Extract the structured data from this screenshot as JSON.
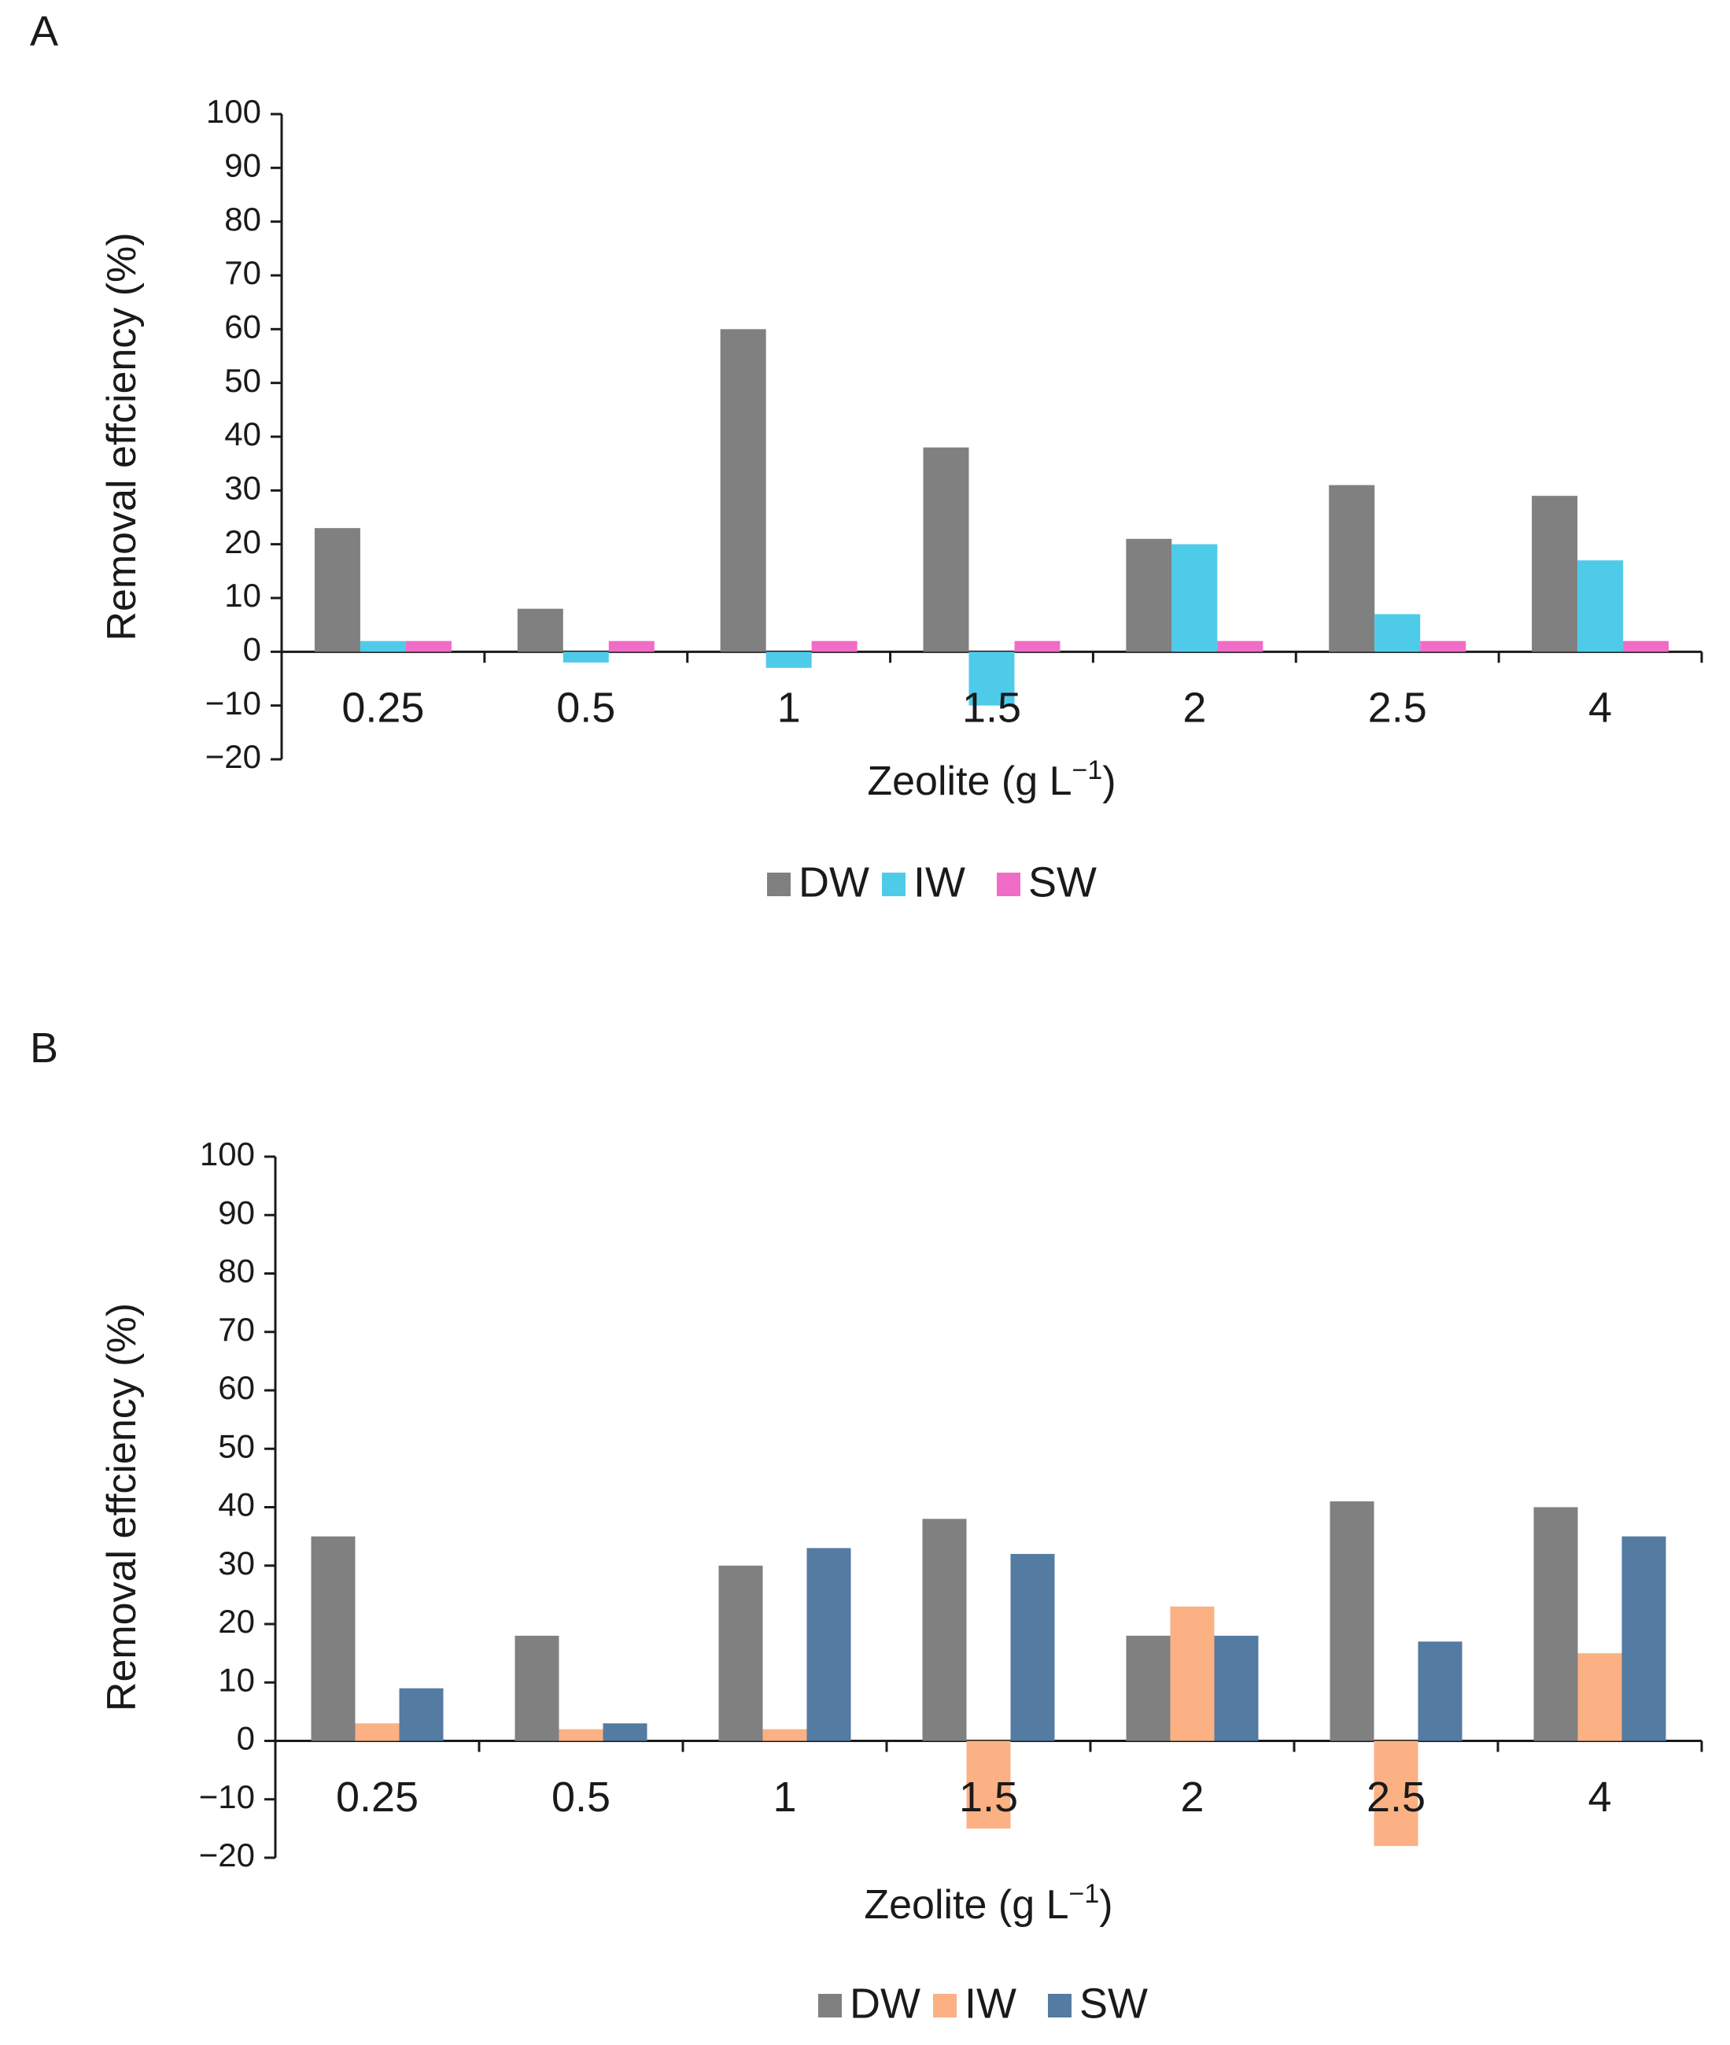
{
  "chart_data": [
    {
      "type": "bar",
      "panel_label": "A",
      "categories": [
        "0.25",
        "0.5",
        "1",
        "1.5",
        "2",
        "2.5",
        "4"
      ],
      "series": [
        {
          "name": "DW",
          "color": "#808080",
          "values": [
            23,
            8,
            60,
            38,
            21,
            31,
            29
          ]
        },
        {
          "name": "IW",
          "color": "#4fcbea",
          "values": [
            2,
            -2,
            -3,
            -10,
            20,
            7,
            17
          ]
        },
        {
          "name": "SW",
          "color": "#f06cc7",
          "values": [
            2,
            2,
            2,
            2,
            2,
            2,
            2
          ]
        }
      ],
      "yticks": [
        "-20",
        "-10",
        "0",
        "10",
        "20",
        "30",
        "40",
        "50",
        "60",
        "70",
        "80",
        "90",
        "100"
      ],
      "ylim": [
        -20,
        100
      ],
      "ylabel": "Removal effciency (%)",
      "xlabel": "Zeolite (g L",
      "xlabel_sup": "−1",
      "xlabel_end": ")",
      "legend": [
        "DW",
        "IW",
        "SW"
      ]
    },
    {
      "type": "bar",
      "panel_label": "B",
      "categories": [
        "0.25",
        "0.5",
        "1",
        "1.5",
        "2",
        "2.5",
        "4"
      ],
      "series": [
        {
          "name": "DW",
          "color": "#808080",
          "values": [
            35,
            18,
            30,
            38,
            18,
            41,
            40
          ]
        },
        {
          "name": "IW",
          "color": "#fbb183",
          "values": [
            3,
            2,
            2,
            -15,
            23,
            -18,
            15
          ]
        },
        {
          "name": "SW",
          "color": "#547ba1",
          "values": [
            9,
            3,
            33,
            32,
            18,
            17,
            35
          ]
        }
      ],
      "yticks": [
        "-20",
        "-10",
        "0",
        "10",
        "20",
        "30",
        "40",
        "50",
        "60",
        "70",
        "80",
        "90",
        "100"
      ],
      "ylim": [
        -20,
        100
      ],
      "ylabel": "Removal effciency (%)",
      "xlabel": "Zeolite (g L",
      "xlabel_sup": "−1",
      "xlabel_end": ")",
      "legend": [
        "DW",
        "IW",
        "SW"
      ]
    }
  ]
}
